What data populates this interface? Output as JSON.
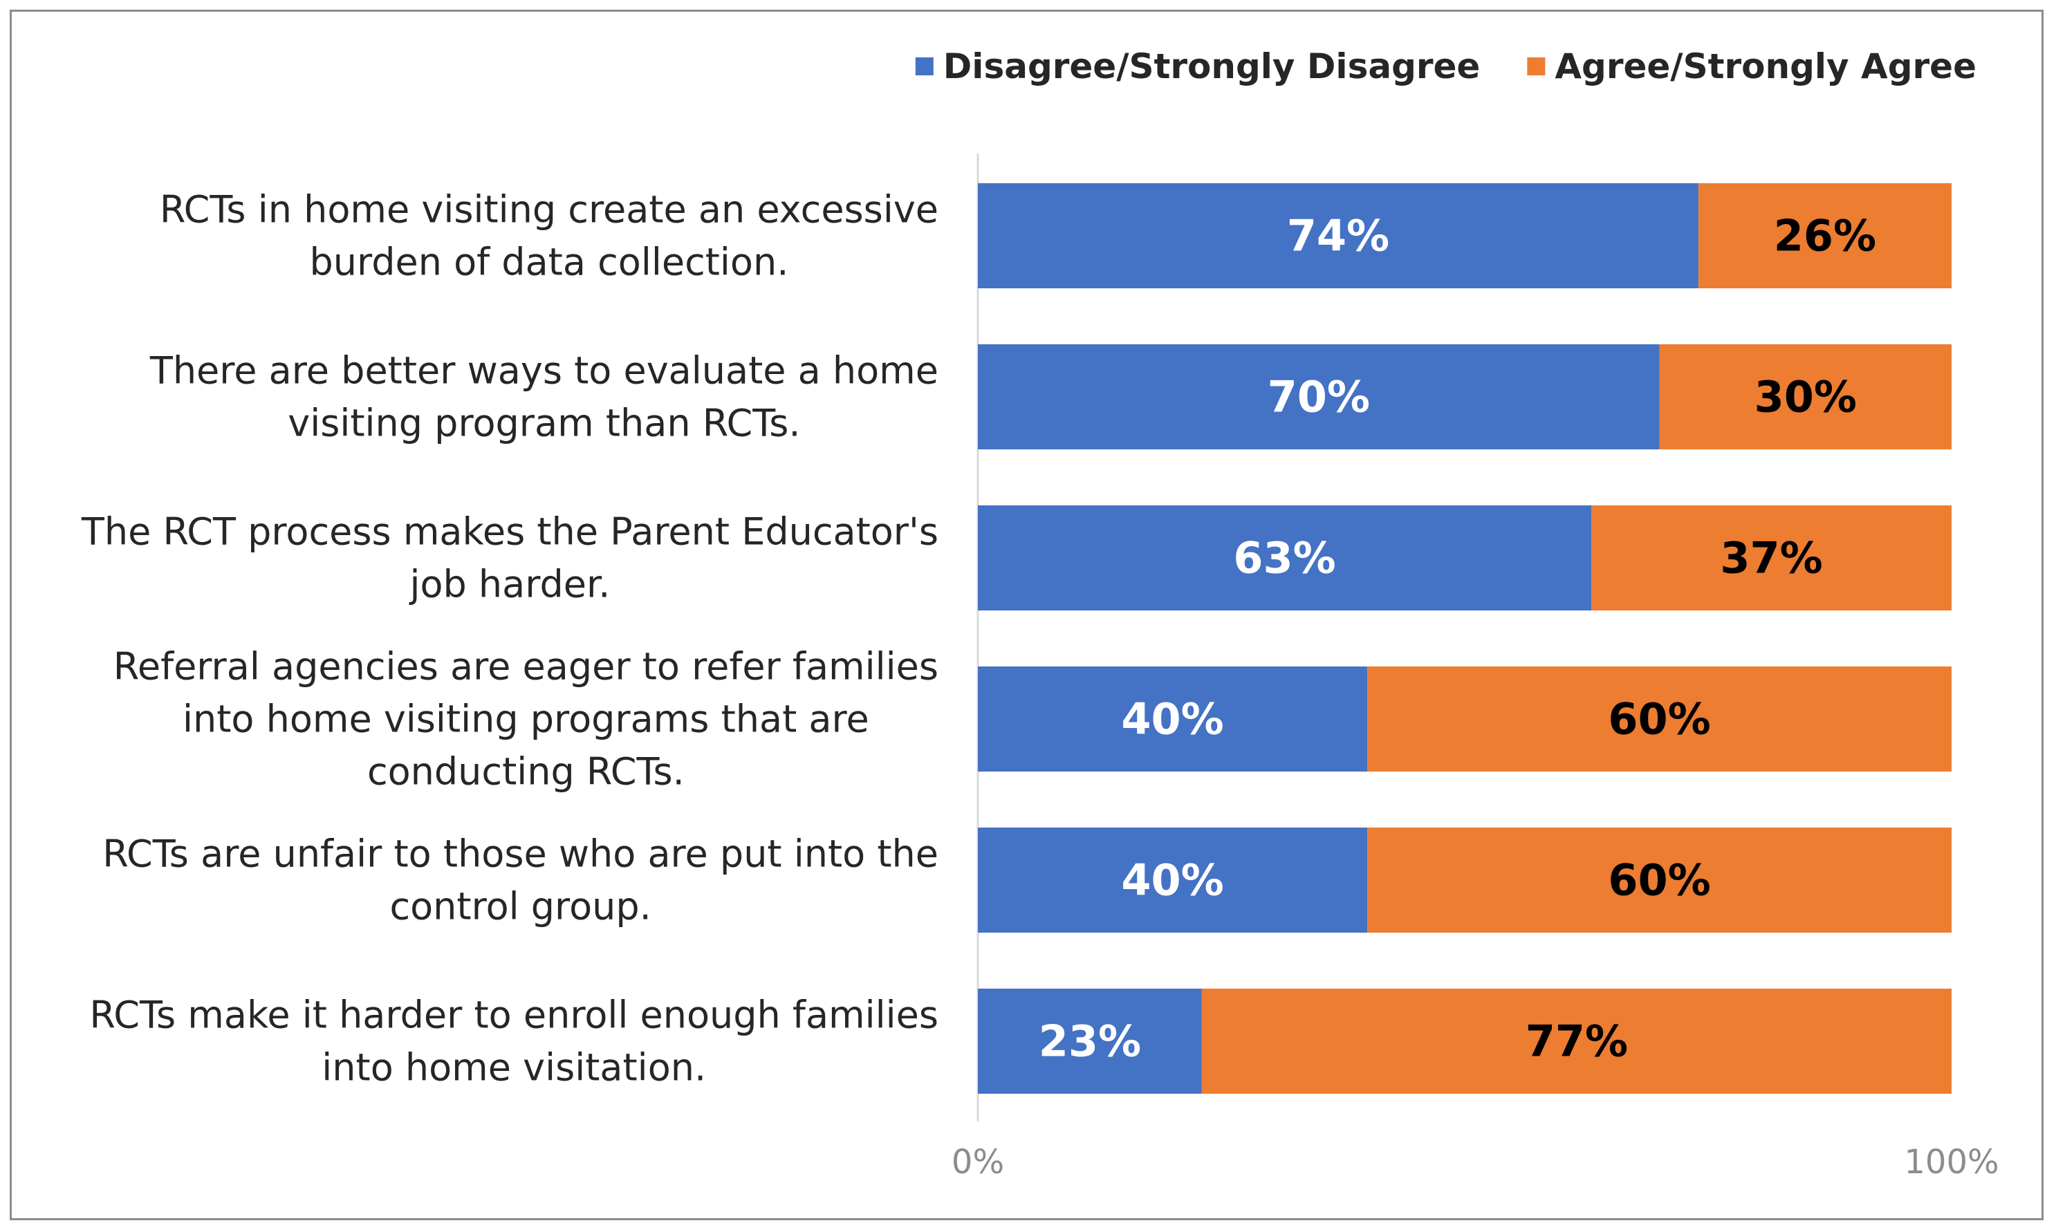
{
  "chart_data": {
    "type": "bar",
    "orientation": "horizontal",
    "stacked": "percent",
    "categories": [
      [
        "RCTs in home visiting create an excessive",
        "burden of data collection."
      ],
      [
        "There are better ways to evaluate a home",
        "visiting program than RCTs."
      ],
      [
        "The RCT process makes the Parent Educator's",
        "job harder."
      ],
      [
        "Referral agencies are eager to refer families",
        "into home visiting programs that are",
        "conducting RCTs."
      ],
      [
        "RCTs are unfair to those who are put into the",
        "control group."
      ],
      [
        "RCTs make it harder to enroll enough families",
        "into home visitation."
      ]
    ],
    "series": [
      {
        "name": "Disagree/Strongly Disagree",
        "color": "#4472C4",
        "label_color": "#FFFFFF",
        "values": [
          74,
          70,
          63,
          40,
          40,
          23
        ],
        "labels": [
          "74%",
          "70%",
          "63%",
          "40%",
          "40%",
          "23%"
        ]
      },
      {
        "name": "Agree/Strongly Agree",
        "color": "#ED7D31",
        "label_color": "#000000",
        "values": [
          26,
          30,
          37,
          60,
          60,
          77
        ],
        "labels": [
          "26%",
          "30%",
          "37%",
          "60%",
          "60%",
          "77%"
        ]
      }
    ],
    "xlim": [
      0,
      100
    ],
    "x_ticks": [
      "0%",
      "100%"
    ],
    "legend": "top-right",
    "grid": false
  }
}
